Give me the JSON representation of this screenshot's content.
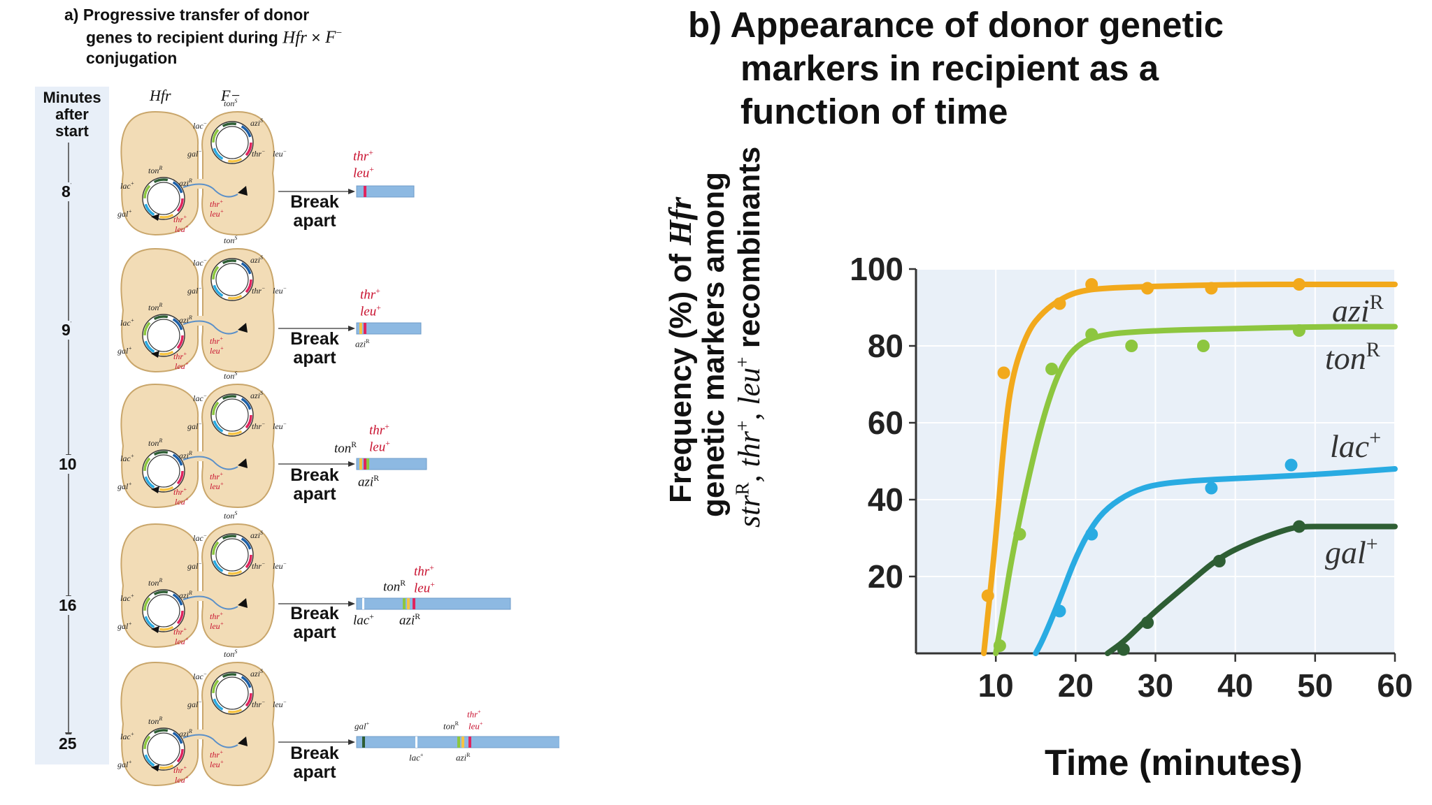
{
  "panel_a": {
    "title_lines": [
      "a) Progressive transfer of donor",
      "genes to recipient during",
      "conjugation"
    ],
    "title_hfr": "Hfr",
    "title_times": "×",
    "title_fminus": "F",
    "title_minus": "−",
    "timeline_label_lines": [
      "Minutes",
      "after",
      "start"
    ],
    "col_hfr": "Hfr",
    "col_fminus": "F−",
    "break_label_lines": [
      "Break",
      "apart"
    ],
    "cell_labels": {
      "tonS": "ton",
      "tonS_sup": "S",
      "aziS": "azi",
      "aziS_sup": "S",
      "lacm": "lac",
      "lacm_sup": "−",
      "galm": "gal",
      "galm_sup": "−",
      "thrm": "thr",
      "thrm_sup": "−",
      "leum": "leu",
      "leum_sup": "−",
      "tonR": "ton",
      "tonR_sup": "R",
      "aziR": "azi",
      "aziR_sup": "R",
      "lacp": "lac",
      "lacp_sup": "+",
      "galp": "gal",
      "galp_sup": "+",
      "thrp": "thr",
      "thrp_sup": "+",
      "leup": "leu",
      "leup_sup": "+"
    },
    "rows": [
      {
        "minutes": "8"
      },
      {
        "minutes": "9"
      },
      {
        "minutes": "10"
      },
      {
        "minutes": "16"
      },
      {
        "minutes": "25"
      }
    ]
  },
  "panel_b": {
    "title_lines": [
      "b) Appearance of donor genetic",
      "markers in recipient as a",
      "function of time"
    ],
    "ylabel_line1": "Frequency (%) of ",
    "ylabel_line1_it": "Hfr",
    "ylabel_line2": "genetic markers among",
    "ylabel_line3": {
      "a": "str",
      "a_sup": "R",
      "b": ", thr",
      "b_sup": "+",
      "c": ", leu",
      "c_sup": "+",
      "d": " recombinants"
    },
    "xlabel": "Time (minutes)"
  },
  "colors": {
    "aziR": "#f2a91c",
    "tonR": "#8dc63f",
    "lac": "#29abe2",
    "gal": "#2e5e34",
    "cell": "#f2dcb6",
    "cell_edge": "#c9a66b",
    "timeline": "#e8eff8",
    "chromosome": "#8db9e2",
    "thr_leu": "#c8102e",
    "plot_bg": "#e9f0f8"
  },
  "chart_data": {
    "type": "line",
    "xlabel": "Time (minutes)",
    "ylabel": "Frequency (%) of Hfr genetic markers among strR, thr+, leu+ recombinants",
    "xlim": [
      0,
      60
    ],
    "ylim": [
      0,
      100
    ],
    "x_ticks": [
      10,
      20,
      30,
      40,
      50,
      60
    ],
    "y_ticks": [
      20,
      40,
      60,
      80,
      100
    ],
    "series": [
      {
        "name": "aziR",
        "label_a": "azi",
        "label_sup": "R",
        "color": "#f2a91c",
        "curve": [
          [
            8.5,
            0
          ],
          [
            9,
            10
          ],
          [
            10,
            30
          ],
          [
            11,
            55
          ],
          [
            12,
            72
          ],
          [
            14,
            84
          ],
          [
            16,
            89
          ],
          [
            18,
            92
          ],
          [
            20,
            94
          ],
          [
            23,
            95
          ],
          [
            30,
            95.5
          ],
          [
            40,
            96
          ],
          [
            50,
            96
          ],
          [
            60,
            96
          ]
        ],
        "points": [
          [
            9,
            15
          ],
          [
            11,
            73
          ],
          [
            18,
            91
          ],
          [
            22,
            96
          ],
          [
            29,
            95
          ],
          [
            37,
            95
          ],
          [
            48,
            96
          ]
        ]
      },
      {
        "name": "tonR",
        "label_a": "ton",
        "label_sup": "R",
        "color": "#8dc63f",
        "curve": [
          [
            10,
            0
          ],
          [
            11,
            12
          ],
          [
            12,
            25
          ],
          [
            14,
            45
          ],
          [
            16,
            62
          ],
          [
            18,
            74
          ],
          [
            20,
            80
          ],
          [
            23,
            83
          ],
          [
            30,
            84
          ],
          [
            40,
            84.5
          ],
          [
            50,
            85
          ],
          [
            60,
            85
          ]
        ],
        "points": [
          [
            10.5,
            2
          ],
          [
            13,
            31
          ],
          [
            17,
            74
          ],
          [
            22,
            83
          ],
          [
            27,
            80
          ],
          [
            36,
            80
          ],
          [
            48,
            84
          ]
        ]
      },
      {
        "name": "lac",
        "label_a": "lac",
        "label_sup": "+",
        "color": "#29abe2",
        "curve": [
          [
            15,
            0
          ],
          [
            16,
            4
          ],
          [
            18,
            14
          ],
          [
            20,
            25
          ],
          [
            22,
            33
          ],
          [
            24,
            38
          ],
          [
            27,
            42
          ],
          [
            30,
            44
          ],
          [
            35,
            45
          ],
          [
            40,
            45.5
          ],
          [
            50,
            46.5
          ],
          [
            60,
            48
          ]
        ],
        "points": [
          [
            18,
            11
          ],
          [
            22,
            31
          ],
          [
            37,
            43
          ],
          [
            47,
            49
          ]
        ]
      },
      {
        "name": "gal",
        "label_a": "gal",
        "label_sup": "+",
        "color": "#2e5e34",
        "curve": [
          [
            24,
            0
          ],
          [
            26,
            3
          ],
          [
            28,
            7
          ],
          [
            30,
            11
          ],
          [
            34,
            18
          ],
          [
            38,
            25
          ],
          [
            42,
            29
          ],
          [
            46,
            32
          ],
          [
            48,
            33
          ],
          [
            52,
            33
          ],
          [
            60,
            33
          ]
        ],
        "points": [
          [
            26,
            1
          ],
          [
            29,
            8
          ],
          [
            38,
            24
          ],
          [
            48,
            33
          ]
        ]
      }
    ]
  }
}
